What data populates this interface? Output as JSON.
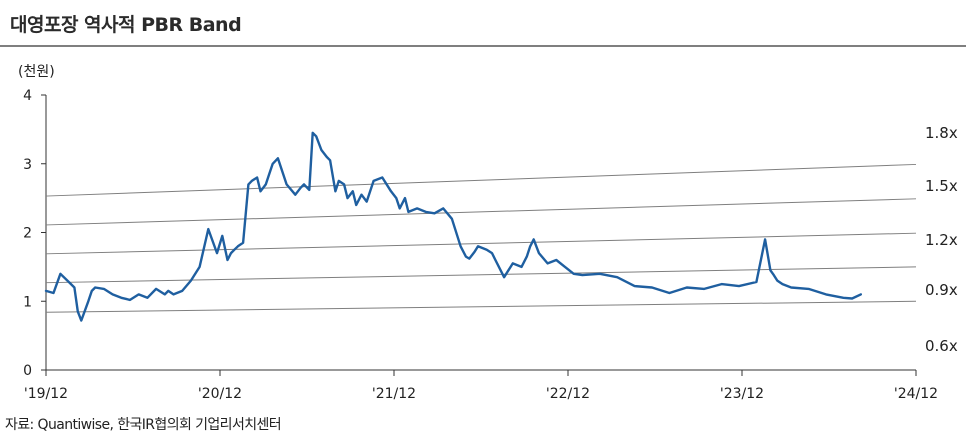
{
  "title": "대영포장 역사적 PBR Band",
  "source": "자료: Quantiwise, 한국IR협의회 기업리서치센터",
  "chart_data": {
    "type": "line",
    "title": "대영포장 역사적 PBR Band",
    "ylabel": "(천원)",
    "ylim": [
      0,
      4
    ],
    "yticks": [
      "0",
      "1",
      "2",
      "3",
      "4"
    ],
    "xticks": [
      "'19/12",
      "'20/12",
      "'21/12",
      "'22/12",
      "'23/12",
      "'24/12"
    ],
    "xlim": [
      2019.917,
      2024.917
    ],
    "grid": false,
    "line_color": "#1f5fa0",
    "band_color": "#7f7f7f",
    "bands": [
      {
        "name": "1.8x",
        "values": [
          2.53,
          2.99
        ]
      },
      {
        "name": "1.5x",
        "values": [
          2.11,
          2.49
        ]
      },
      {
        "name": "1.2x",
        "values": [
          1.69,
          1.99
        ]
      },
      {
        "name": "0.9x",
        "values": [
          1.27,
          1.5
        ]
      },
      {
        "name": "0.6x",
        "values": [
          0.84,
          1.0
        ]
      }
    ],
    "series": [
      {
        "x": [
          2019.917,
          2019.96,
          2020.0,
          2020.04,
          2020.08,
          2020.1,
          2020.12,
          2020.16,
          2020.18,
          2020.2,
          2020.25,
          2020.3,
          2020.35,
          2020.4,
          2020.45,
          2020.5,
          2020.55,
          2020.6,
          2020.62,
          2020.65,
          2020.7,
          2020.75,
          2020.8,
          2020.85,
          2020.9,
          2020.93,
          2020.96,
          2020.98,
          2021.0,
          2021.02,
          2021.05,
          2021.08,
          2021.1,
          2021.13,
          2021.15,
          2021.18,
          2021.2,
          2021.22,
          2021.25,
          2021.3,
          2021.35,
          2021.38,
          2021.4,
          2021.43,
          2021.45,
          2021.47,
          2021.5,
          2021.53,
          2021.55,
          2021.58,
          2021.6,
          2021.63,
          2021.65,
          2021.68,
          2021.7,
          2021.73,
          2021.76,
          2021.8,
          2021.85,
          2021.9,
          2021.93,
          2021.95,
          2021.98,
          2022.0,
          2022.05,
          2022.1,
          2022.15,
          2022.2,
          2022.25,
          2022.3,
          2022.33,
          2022.35,
          2022.38,
          2022.4,
          2022.45,
          2022.48,
          2022.5,
          2022.55,
          2022.6,
          2022.65,
          2022.68,
          2022.7,
          2022.72,
          2022.75,
          2022.8,
          2022.85,
          2022.9,
          2022.95,
          2023.0,
          2023.1,
          2023.2,
          2023.3,
          2023.4,
          2023.5,
          2023.6,
          2023.7,
          2023.8,
          2023.9,
          2024.0,
          2024.05,
          2024.08,
          2024.1,
          2024.12,
          2024.15,
          2024.2,
          2024.3,
          2024.4,
          2024.5,
          2024.55,
          2024.6
        ],
        "values": [
          1.15,
          1.12,
          1.4,
          1.3,
          1.2,
          0.85,
          0.72,
          1.0,
          1.15,
          1.2,
          1.18,
          1.1,
          1.05,
          1.02,
          1.1,
          1.05,
          1.18,
          1.1,
          1.15,
          1.1,
          1.15,
          1.3,
          1.5,
          2.05,
          1.7,
          1.95,
          1.6,
          1.7,
          1.75,
          1.8,
          1.85,
          2.7,
          2.75,
          2.8,
          2.6,
          2.7,
          2.85,
          3.0,
          3.08,
          2.7,
          2.55,
          2.65,
          2.7,
          2.62,
          3.45,
          3.4,
          3.2,
          3.1,
          3.05,
          2.6,
          2.75,
          2.7,
          2.5,
          2.6,
          2.4,
          2.55,
          2.45,
          2.75,
          2.8,
          2.6,
          2.5,
          2.35,
          2.5,
          2.3,
          2.35,
          2.3,
          2.28,
          2.35,
          2.2,
          1.8,
          1.65,
          1.62,
          1.72,
          1.8,
          1.75,
          1.7,
          1.6,
          1.35,
          1.55,
          1.5,
          1.65,
          1.8,
          1.9,
          1.7,
          1.55,
          1.6,
          1.5,
          1.4,
          1.38,
          1.4,
          1.35,
          1.22,
          1.2,
          1.12,
          1.2,
          1.18,
          1.25,
          1.22,
          1.28,
          1.9,
          1.45,
          1.38,
          1.3,
          1.25,
          1.2,
          1.18,
          1.1,
          1.05,
          1.04,
          1.1
        ]
      }
    ]
  }
}
